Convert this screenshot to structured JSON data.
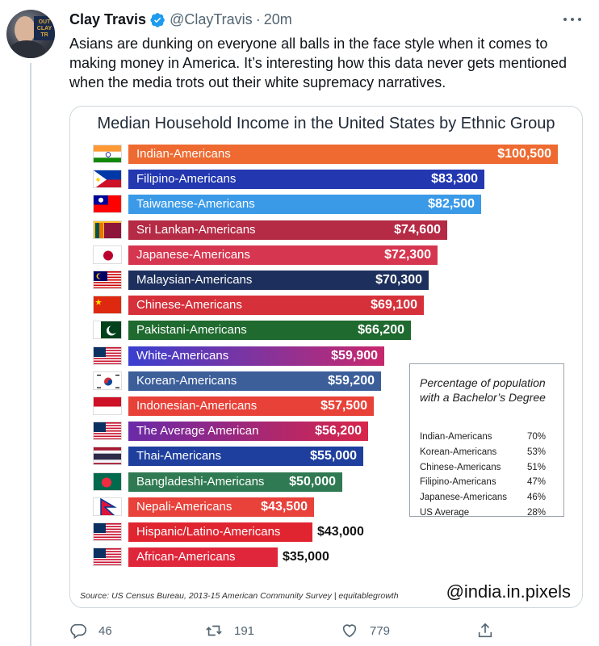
{
  "tweet": {
    "display_name": "Clay Travis",
    "handle": "@ClayTravis",
    "separator": "·",
    "time": "20m",
    "text": "Asians are dunking on everyone all balls in the face style when it comes to making money in America. It’s interesting how this data never gets mentioned when the media trots out their white supremacy narratives."
  },
  "avatar": {
    "sign_text": "OUTKICK CLAY TRAVIS"
  },
  "colors": {
    "brand_blue": "#1d9bf0",
    "muted": "#536471"
  },
  "media": {
    "watermark": "@india.in.pixels",
    "source": "Source: US Census Bureau, 2013-15 American Community Survey | equitablegrowth"
  },
  "chart_data": {
    "type": "bar",
    "orientation": "horizontal",
    "title": "Median Household Income in the United States  by Ethnic Group",
    "categories": [
      "Indian-Americans",
      "Filipino-Americans",
      "Taiwanese-Americans",
      "Sri Lankan-Americans",
      "Japanese-Americans",
      "Malaysian-Americans",
      "Chinese-Americans",
      "Pakistani-Americans",
      "White-Americans",
      "Korean-Americans",
      "Indonesian-Americans",
      "The Average American",
      "Thai-Americans",
      "Bangladeshi-Americans",
      "Nepali-Americans",
      "Hispanic/Latino-Americans",
      "African-Americans"
    ],
    "values": [
      100500,
      83300,
      82500,
      74600,
      72300,
      70300,
      69100,
      66200,
      59900,
      59200,
      57500,
      56200,
      55000,
      50000,
      43500,
      43000,
      35000
    ],
    "value_labels": [
      "$100,500",
      "$83,300",
      "$82,500",
      "$74,600",
      "$72,300",
      "$70,300",
      "$69,100",
      "$66,200",
      "$59,900",
      "$59,200",
      "$57,500",
      "$56,200",
      "$55,000",
      "$50,000",
      "$43,500",
      "$43,000",
      "$35,000"
    ],
    "bar_colors": [
      "#ee6a30",
      "#2237b0",
      "#3a9ae8",
      "#b52a44",
      "#d6364f",
      "#1d2f5c",
      "#d6303a",
      "#1f6a2e",
      "#6a35c6",
      "#3c5f9a",
      "#e84138",
      "#7a2ca0",
      "#1e3f9e",
      "#2f7a52",
      "#e8423b",
      "#e02530",
      "#e0263a"
    ],
    "flags": [
      "india",
      "philippines",
      "taiwan",
      "sri-lanka",
      "japan",
      "malaysia",
      "china",
      "pakistan",
      "usa",
      "south-korea",
      "indonesia",
      "usa",
      "thailand",
      "bangladesh",
      "nepal",
      "usa",
      "usa"
    ],
    "inset_table": {
      "title": "Percentage of population with a Bachelor’s Degree",
      "rows": [
        {
          "name": "Indian-Americans",
          "value": "70%"
        },
        {
          "name": "Korean-Americans",
          "value": "53%"
        },
        {
          "name": "Chinese-Americans",
          "value": "51%"
        },
        {
          "name": "Filipino-Americans",
          "value": "47%"
        },
        {
          "name": "Japanese-Americans",
          "value": "46%"
        },
        {
          "name": "US Average",
          "value": "28%"
        }
      ]
    }
  },
  "actions": {
    "reply_count": "46",
    "retweet_count": "191",
    "like_count": "779"
  }
}
